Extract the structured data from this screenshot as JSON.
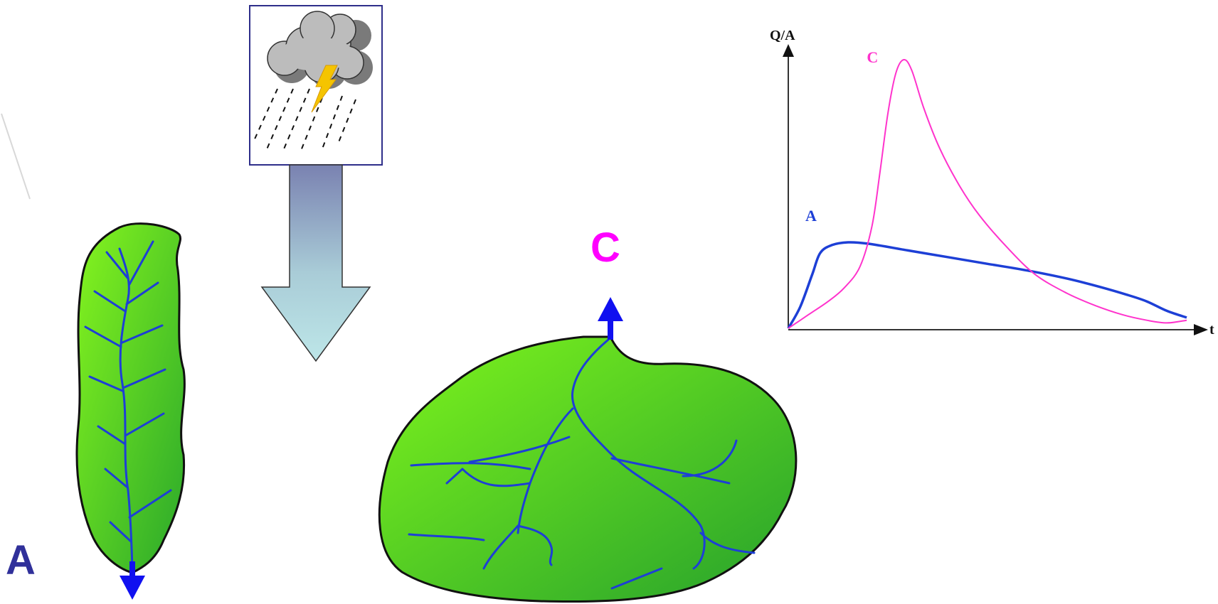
{
  "diagram": {
    "basin_a_label": "A",
    "basin_c_label": "C",
    "colors": {
      "basin_fill_light": "#7cf21a",
      "basin_fill_dark": "#2fb52a",
      "stream": "#1d3fd6",
      "outlet_arrow": "#1010f0",
      "label_a": "#30309a",
      "label_c": "#ff00ff",
      "rain_arrow_top": "#7d86b3",
      "rain_arrow_bottom": "#b8e3e6"
    },
    "icons": [
      "storm-cloud-icon",
      "lightning-icon",
      "rain-icon"
    ]
  },
  "chart_data": {
    "type": "line",
    "ylabel": "Q/A",
    "xlabel": "t",
    "xlim": [
      0,
      100
    ],
    "ylim": [
      0,
      100
    ],
    "series": [
      {
        "name": "A",
        "color": "#1d3fd6",
        "x": [
          0,
          3,
          6,
          8,
          11,
          15,
          20,
          30,
          40,
          50,
          60,
          70,
          78,
          85,
          90,
          95,
          100
        ],
        "y": [
          0,
          8,
          20,
          28,
          31,
          32,
          31.5,
          29,
          26.5,
          24,
          21.5,
          18.5,
          15.5,
          12.5,
          10,
          6.5,
          4
        ]
      },
      {
        "name": "C",
        "color": "#ff33cc",
        "x": [
          0,
          5,
          10,
          14,
          18,
          21,
          23,
          25,
          27,
          29,
          31,
          34,
          38,
          43,
          48,
          55,
          62,
          70,
          77,
          84,
          90,
          95,
          100
        ],
        "y": [
          0,
          5,
          10,
          15,
          23,
          38,
          58,
          80,
          95,
          100,
          96,
          82,
          67,
          53,
          42,
          30,
          20,
          13,
          8.5,
          5,
          3,
          2,
          3
        ]
      }
    ]
  }
}
